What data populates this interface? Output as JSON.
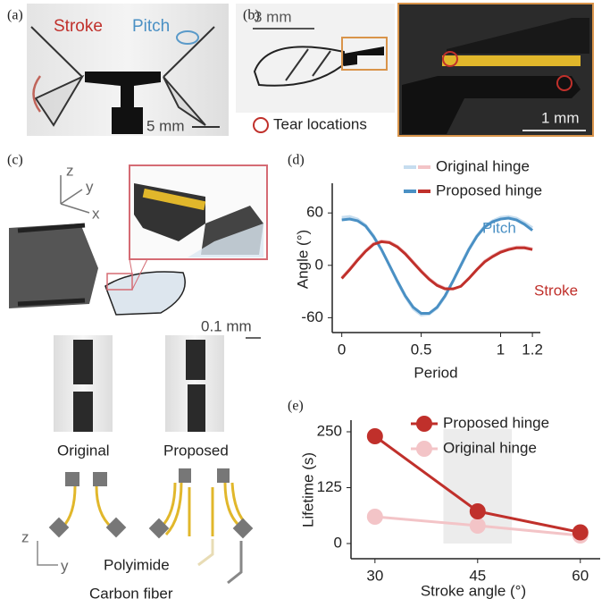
{
  "panels": {
    "a": {
      "label": "(a)",
      "stroke": "Stroke",
      "pitch": "Pitch",
      "scale": "5 mm"
    },
    "b": {
      "label": "(b)",
      "scale": "3 mm",
      "legend": "Tear locations",
      "inset_scale": "1 mm"
    },
    "c": {
      "label": "(c)",
      "axes": [
        "z",
        "y",
        "x"
      ],
      "scale": "0.1 mm",
      "photos": [
        "Original",
        "Proposed"
      ],
      "axes_2d": [
        "z",
        "y"
      ],
      "materials": [
        "Polyimide",
        "Carbon fiber"
      ]
    }
  },
  "chart_data": [
    {
      "type": "line",
      "label": "(d)",
      "x_label": "Period",
      "y_label": "Angle (°)",
      "annotations": {
        "pitch": "Pitch",
        "stroke": "Stroke"
      },
      "x": [
        0,
        0.05,
        0.1,
        0.15,
        0.2,
        0.25,
        0.3,
        0.35,
        0.4,
        0.45,
        0.5,
        0.55,
        0.6,
        0.65,
        0.7,
        0.75,
        0.8,
        0.85,
        0.9,
        0.95,
        1,
        1.05,
        1.1,
        1.15,
        1.2
      ],
      "series": [
        {
          "name": "Original hinge",
          "colors": {
            "pitch": "#c6ddef",
            "stroke": "#f3c4c7"
          },
          "pitch": [
            55,
            56,
            53,
            46,
            34,
            18,
            0,
            -19,
            -36,
            -50,
            -57,
            -56,
            -49,
            -36,
            -18,
            1,
            19,
            34,
            45,
            51,
            55,
            56,
            54,
            49,
            43
          ],
          "stroke": [
            -14,
            -4,
            7,
            17,
            25,
            28,
            27,
            22,
            14,
            4,
            -6,
            -15,
            -22,
            -26,
            -27,
            -24,
            -15,
            -5,
            5,
            11,
            16,
            19,
            21,
            21,
            19
          ]
        },
        {
          "name": "Proposed hinge",
          "colors": {
            "pitch": "#4a90c4",
            "stroke": "#c0302b"
          },
          "pitch": [
            52,
            53,
            51,
            45,
            33,
            18,
            0,
            -18,
            -35,
            -48,
            -55,
            -55,
            -48,
            -35,
            -18,
            0,
            18,
            33,
            44,
            50,
            53,
            54,
            52,
            47,
            40
          ],
          "stroke": [
            -15,
            -5,
            6,
            16,
            24,
            27,
            26,
            21,
            13,
            3,
            -7,
            -16,
            -23,
            -27,
            -27,
            -24,
            -15,
            -5,
            4,
            10,
            15,
            18,
            20,
            20,
            18
          ]
        }
      ],
      "xlim": [
        -0.06,
        1.25
      ],
      "ylim": [
        -77,
        94
      ],
      "xticks": [
        0,
        0.5,
        1,
        1.2
      ],
      "yticks": [
        -60,
        0,
        60
      ]
    },
    {
      "type": "line",
      "label": "(e)",
      "x_label": "Stroke angle (°)",
      "y_label": "Lifetime (s)",
      "x": [
        30,
        45,
        60
      ],
      "series": [
        {
          "name": "Proposed hinge",
          "color": "#c0302b",
          "values": [
            240,
            72,
            25
          ]
        },
        {
          "name": "Original hinge",
          "color": "#f3c4c7",
          "values": [
            60,
            40,
            18
          ]
        }
      ],
      "highlight_x": [
        40,
        50
      ],
      "xlim": [
        26.5,
        62.9
      ],
      "ylim": [
        -34,
        276
      ],
      "xticks": [
        30,
        45,
        60
      ],
      "yticks": [
        0,
        125,
        250
      ]
    }
  ]
}
